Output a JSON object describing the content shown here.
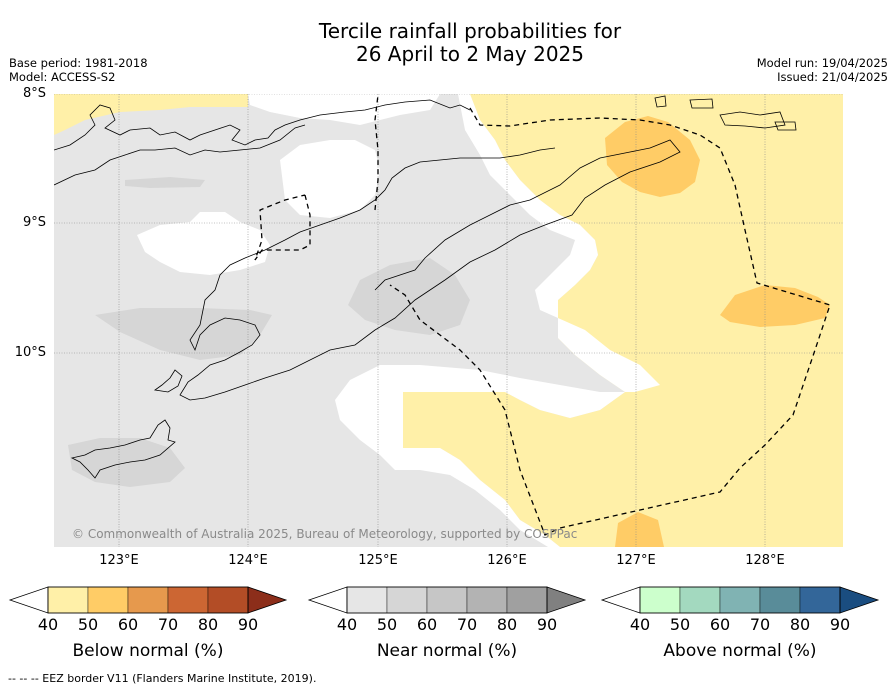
{
  "title_line1": "Tercile rainfall probabilities for",
  "title_line2": "26 April to 2 May 2025",
  "base_period": "Base period: 1981-2018",
  "model": "Model: ACCESS-S2",
  "model_run": "Model run: 19/04/2025",
  "issued": "Issued: 21/04/2025",
  "lat_labels": [
    "8°S",
    "9°S",
    "10°S"
  ],
  "lon_labels": [
    "123°E",
    "124°E",
    "125°E",
    "126°E",
    "127°E",
    "128°E"
  ],
  "copyright": "© Commonwealth of Australia 2025, Bureau of Meteorology, supported by COSPPac",
  "colorbars": [
    {
      "label": "Below normal (%)",
      "ticks": [
        "40",
        "50",
        "60",
        "70",
        "80",
        "90"
      ],
      "colors": [
        "#fff0a8",
        "#ffcc66",
        "#e6994d",
        "#cc6633",
        "#b34d26",
        "#8c2e1a"
      ]
    },
    {
      "label": "Near normal (%)",
      "ticks": [
        "40",
        "50",
        "60",
        "70",
        "80",
        "90"
      ],
      "colors": [
        "#e6e6e6",
        "#d6d6d6",
        "#c6c6c6",
        "#b3b3b3",
        "#a0a0a0",
        "#808080"
      ]
    },
    {
      "label": "Above normal (%)",
      "ticks": [
        "40",
        "50",
        "60",
        "70",
        "80",
        "90"
      ],
      "colors": [
        "#ccffcc",
        "#a3d9bf",
        "#80b3b3",
        "#598c99",
        "#336699",
        "#1a4d80"
      ]
    }
  ],
  "footer": "--  --  -- EEZ border V11 (Flanders Marine Institute, 2019)."
}
